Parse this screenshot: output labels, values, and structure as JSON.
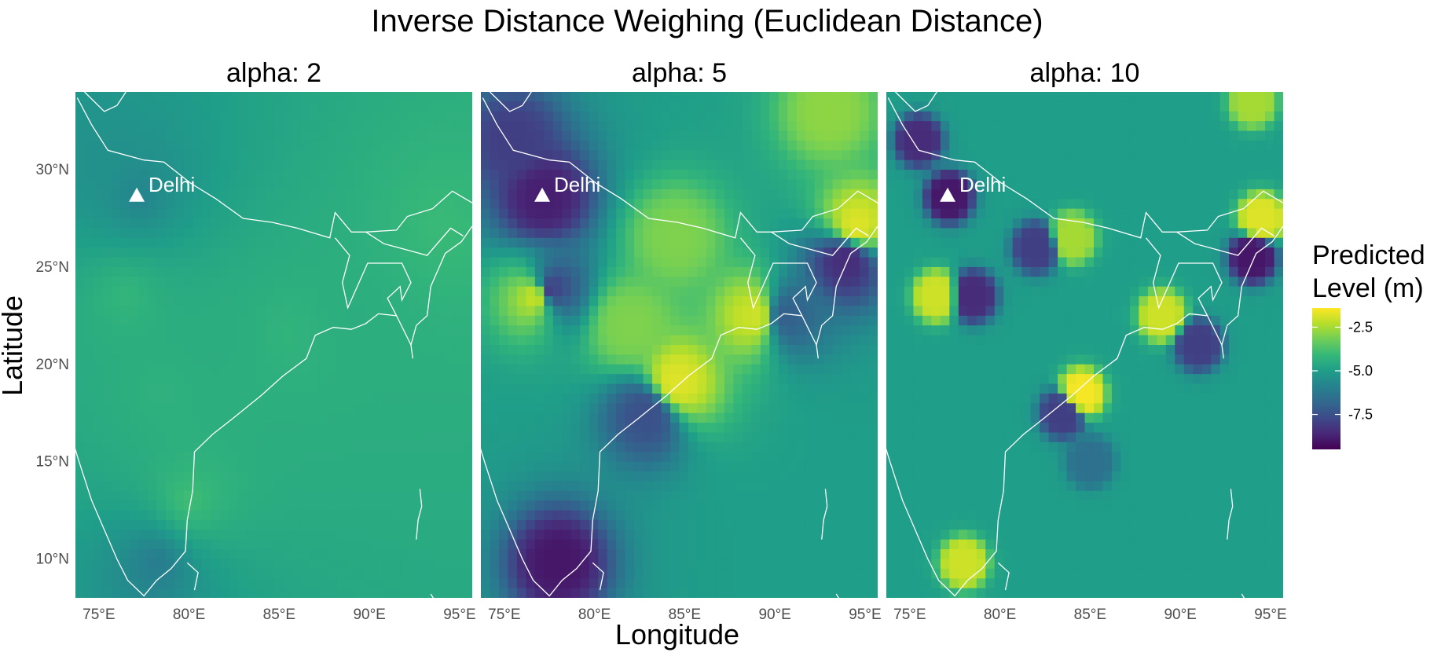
{
  "figure": {
    "title": "Inverse Distance Weighing (Euclidean Distance)",
    "xlabel": "Longitude",
    "ylabel": "Latitude"
  },
  "legend": {
    "title_line1": "Predicted",
    "title_line2": "Level (m)",
    "ticks": [
      "-2.5",
      "-5.0",
      "-7.5"
    ]
  },
  "chart_data": {
    "type": "heatmap",
    "colormap": "viridis",
    "value_range": [
      -9.5,
      -1.4
    ],
    "background_value": -5.0,
    "x_ticks": [
      "75°E",
      "80°E",
      "85°E",
      "90°E",
      "95°E"
    ],
    "y_ticks": [
      "10°N",
      "15°N",
      "20°N",
      "25°N",
      "30°N"
    ],
    "x_range": [
      73.7,
      95.7
    ],
    "y_range": [
      8.0,
      34.0
    ],
    "grid": false,
    "legend_position": "right",
    "panels": [
      {
        "label": "alpha: 2",
        "hotspots": [
          {
            "lon": 77.2,
            "lat": 28.6,
            "value": -6.5
          },
          {
            "lon": 75.0,
            "lat": 30.5,
            "value": -5.8
          },
          {
            "lon": 76.5,
            "lat": 23.5,
            "value": -3.5
          },
          {
            "lon": 78.5,
            "lat": 18.5,
            "value": -3.8
          },
          {
            "lon": 80.0,
            "lat": 13.0,
            "value": -3.0
          },
          {
            "lon": 78.2,
            "lat": 9.8,
            "value": -7.0
          },
          {
            "lon": 82.0,
            "lat": 21.5,
            "value": -4.0
          },
          {
            "lon": 85.5,
            "lat": 21.5,
            "value": -3.6
          },
          {
            "lon": 94.0,
            "lat": 27.0,
            "value": -3.2
          },
          {
            "lon": 89.0,
            "lat": 22.5,
            "value": -4.0
          }
        ]
      },
      {
        "label": "alpha: 5",
        "hotspots": [
          {
            "lon": 77.2,
            "lat": 28.6,
            "value": -8.8
          },
          {
            "lon": 75.5,
            "lat": 31.5,
            "value": -8.0
          },
          {
            "lon": 76.8,
            "lat": 23.5,
            "value": -2.0
          },
          {
            "lon": 77.5,
            "lat": 23.8,
            "value": -8.0
          },
          {
            "lon": 84.5,
            "lat": 19.0,
            "value": -1.8
          },
          {
            "lon": 83.0,
            "lat": 17.5,
            "value": -7.5
          },
          {
            "lon": 78.0,
            "lat": 9.8,
            "value": -9.0
          },
          {
            "lon": 89.0,
            "lat": 22.5,
            "value": -2.0
          },
          {
            "lon": 90.5,
            "lat": 22.5,
            "value": -7.0
          },
          {
            "lon": 94.5,
            "lat": 27.0,
            "value": -1.8
          },
          {
            "lon": 94.0,
            "lat": 25.5,
            "value": -8.5
          },
          {
            "lon": 84.5,
            "lat": 26.5,
            "value": -3.0
          },
          {
            "lon": 82.0,
            "lat": 22.0,
            "value": -3.0
          },
          {
            "lon": 93.0,
            "lat": 33.0,
            "value": -2.8
          }
        ]
      },
      {
        "label": "alpha: 10",
        "hotspots": [
          {
            "lon": 77.2,
            "lat": 28.6,
            "value": -9.0
          },
          {
            "lon": 75.5,
            "lat": 31.5,
            "value": -8.5
          },
          {
            "lon": 76.5,
            "lat": 23.5,
            "value": -2.0
          },
          {
            "lon": 78.5,
            "lat": 23.5,
            "value": -8.5
          },
          {
            "lon": 84.5,
            "lat": 18.5,
            "value": -1.5
          },
          {
            "lon": 83.5,
            "lat": 17.5,
            "value": -8.0
          },
          {
            "lon": 78.0,
            "lat": 9.8,
            "value": -2.0
          },
          {
            "lon": 91.0,
            "lat": 21.0,
            "value": -8.0
          },
          {
            "lon": 89.0,
            "lat": 22.5,
            "value": -2.0
          },
          {
            "lon": 94.0,
            "lat": 25.5,
            "value": -9.0
          },
          {
            "lon": 94.5,
            "lat": 27.5,
            "value": -1.8
          },
          {
            "lon": 84.0,
            "lat": 26.5,
            "value": -2.5
          },
          {
            "lon": 82.0,
            "lat": 26.0,
            "value": -8.0
          },
          {
            "lon": 94.0,
            "lat": 33.5,
            "value": -2.5
          },
          {
            "lon": 85.0,
            "lat": 15.0,
            "value": -6.5
          }
        ]
      }
    ],
    "marker": {
      "label": "Delhi",
      "lon": 77.1,
      "lat": 28.6
    }
  }
}
